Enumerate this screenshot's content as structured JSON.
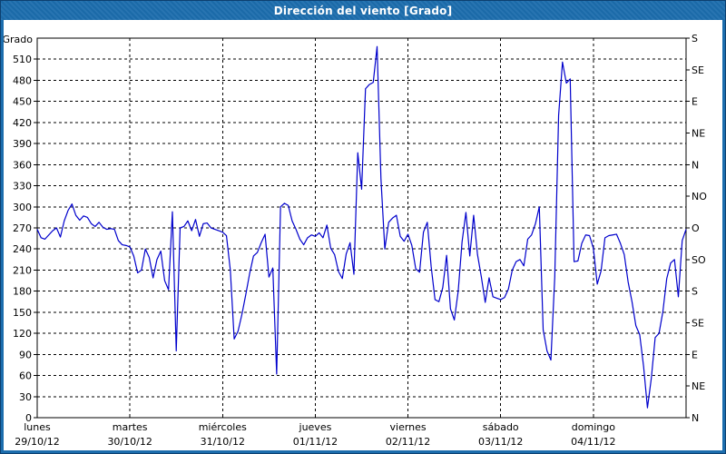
{
  "window": {
    "title": "Dirección del viento [Grado]"
  },
  "colors": {
    "frame_blue": "#1c6dad",
    "frame_outline": "#0d4070",
    "title_text": "#ffffff",
    "plot_background": "#ffffff",
    "grid_and_axis": "#000000",
    "series_line": "#0000cc"
  },
  "chart_data": {
    "type": "line",
    "title": "Dirección del viento [Grado]",
    "ylabel": "Grado",
    "ylim": [
      0,
      540
    ],
    "y_tick_step": 30,
    "y_tick_labels_left": [
      0,
      30,
      60,
      90,
      120,
      150,
      180,
      210,
      240,
      270,
      300,
      330,
      360,
      390,
      420,
      450,
      480,
      510
    ],
    "right_axis": {
      "tick_step_degrees": 45,
      "labels_cycle": [
        "N",
        "NE",
        "E",
        "SE",
        "S",
        "SO",
        "O",
        "NO"
      ],
      "labels_top_to_bottom": [
        "S",
        "SE",
        "E",
        "NE",
        "N",
        "NO",
        "O",
        "SO",
        "S",
        "SE",
        "E",
        "NE",
        "N"
      ]
    },
    "x_days": [
      {
        "name": "lunes",
        "date": "29/10/12"
      },
      {
        "name": "martes",
        "date": "30/10/12"
      },
      {
        "name": "miércoles",
        "date": "31/10/12"
      },
      {
        "name": "jueves",
        "date": "01/11/12"
      },
      {
        "name": "viernes",
        "date": "02/11/12"
      },
      {
        "name": "sábado",
        "date": "03/11/12"
      },
      {
        "name": "domingo",
        "date": "04/11/12"
      }
    ],
    "x_unit": "hours since 29/10/12 00:00",
    "hours_total": 168,
    "grid": "dashed",
    "legend_position": "none",
    "series": [
      {
        "name": "Dirección del viento (Grado)",
        "color": "#0000cc",
        "x_step_hours": 1,
        "values": [
          268,
          256,
          254,
          260,
          266,
          270,
          257,
          280,
          295,
          304,
          288,
          281,
          287,
          285,
          276,
          272,
          278,
          271,
          268,
          269,
          268,
          252,
          246,
          245,
          243,
          230,
          206,
          210,
          240,
          228,
          199,
          225,
          237,
          195,
          182,
          293,
          95,
          270,
          272,
          280,
          266,
          282,
          258,
          276,
          277,
          270,
          268,
          266,
          264,
          259,
          210,
          112,
          123,
          147,
          175,
          205,
          230,
          235,
          249,
          261,
          200,
          213,
          62,
          300,
          305,
          302,
          280,
          268,
          254,
          246,
          256,
          260,
          258,
          263,
          256,
          274,
          241,
          232,
          208,
          198,
          233,
          249,
          204,
          377,
          325,
          468,
          474,
          477,
          528,
          340,
          240,
          278,
          284,
          288,
          258,
          251,
          261,
          245,
          212,
          207,
          264,
          278,
          215,
          168,
          165,
          185,
          231,
          155,
          139,
          180,
          250,
          292,
          230,
          288,
          232,
          200,
          164,
          199,
          172,
          170,
          168,
          171,
          183,
          210,
          222,
          225,
          216,
          254,
          260,
          276,
          300,
          125,
          95,
          82,
          200,
          430,
          506,
          476,
          482,
          222,
          223,
          248,
          260,
          259,
          241,
          190,
          209,
          256,
          259,
          260,
          261,
          248,
          232,
          193,
          165,
          131,
          118,
          73,
          14,
          56,
          114,
          120,
          151,
          198,
          220,
          225,
          172,
          252,
          268
        ]
      }
    ]
  }
}
